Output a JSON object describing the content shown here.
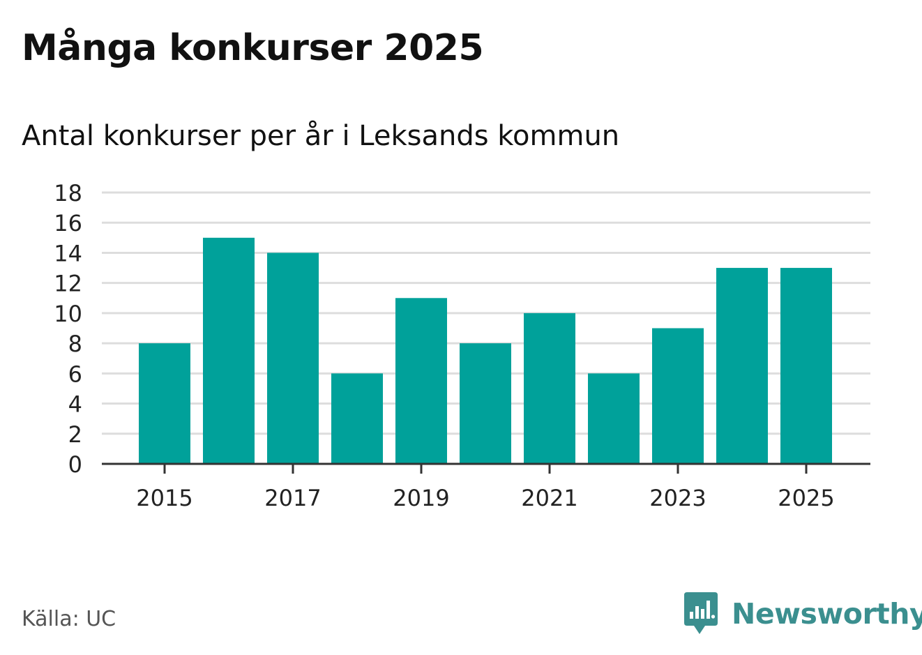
{
  "chart_data": {
    "type": "bar",
    "title": "Många konkurser 2025",
    "subtitle": "Antal konkurser per år i Leksands kommun",
    "categories": [
      "2015",
      "2016",
      "2017",
      "2018",
      "2019",
      "2020",
      "2021",
      "2022",
      "2023",
      "2024",
      "2025"
    ],
    "values": [
      8,
      15,
      14,
      6,
      11,
      8,
      10,
      6,
      9,
      13,
      13
    ],
    "x_tick_labels": [
      "2015",
      "2017",
      "2019",
      "2021",
      "2023",
      "2025"
    ],
    "y_ticks": [
      "0",
      "2",
      "4",
      "6",
      "8",
      "10",
      "12",
      "14",
      "16",
      "18"
    ],
    "ylim": [
      0,
      18
    ],
    "xlabel": "",
    "ylabel": "",
    "grid": true,
    "legend": "none",
    "bar_color": "#00a19a",
    "grid_color": "#dddddd",
    "axis_color": "#333333"
  },
  "footer": {
    "source": "Källa: UC",
    "brand": "Newsworthy",
    "brand_color": "#3b8f8f",
    "brand_icon": "newsworthy-logo-icon"
  }
}
